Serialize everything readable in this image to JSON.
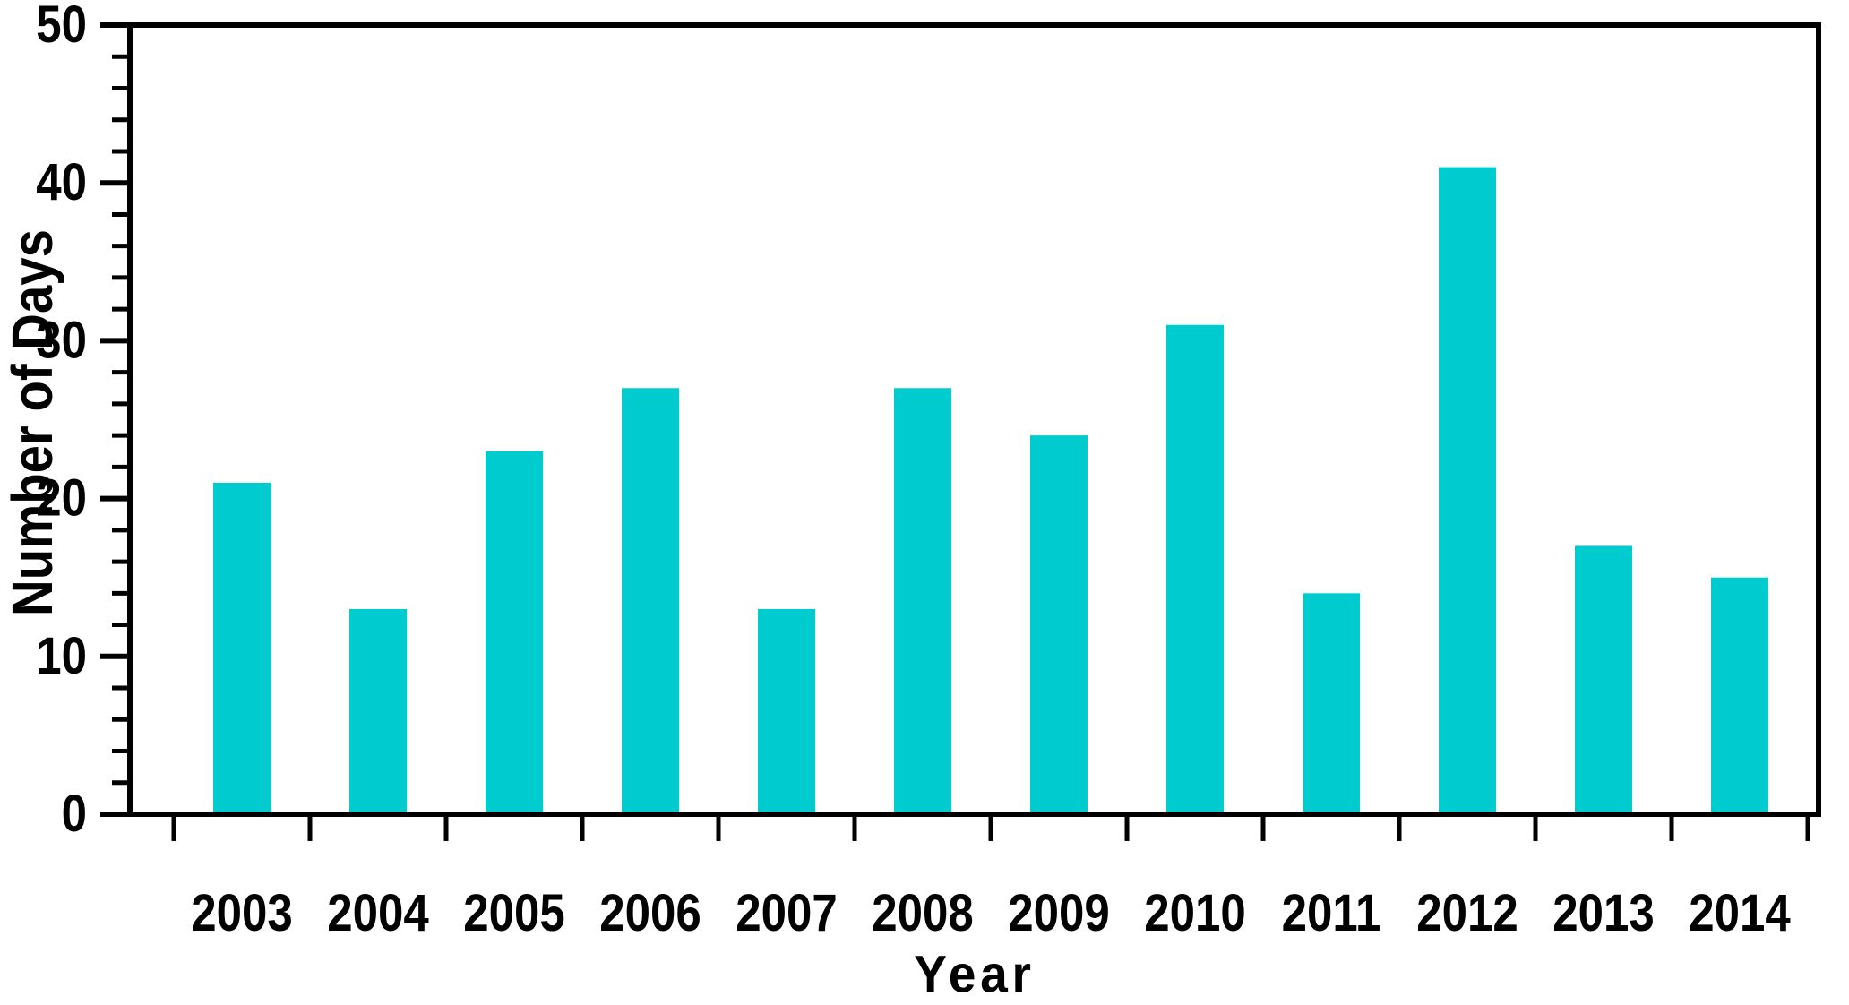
{
  "chart_data": {
    "type": "bar",
    "title": "",
    "xlabel": "Year",
    "ylabel": "Number of Days",
    "categories": [
      "2003",
      "2004",
      "2005",
      "2006",
      "2007",
      "2008",
      "2009",
      "2010",
      "2011",
      "2012",
      "2013",
      "2014"
    ],
    "values": [
      21,
      13,
      23,
      27,
      13,
      27,
      24,
      31,
      14,
      41,
      17,
      15
    ],
    "ylim": [
      0,
      50
    ],
    "y_major_tick_step": 10,
    "y_minor_tick_step": 2,
    "y_tick_labels": [
      "0",
      "10",
      "20",
      "30",
      "40",
      "50"
    ],
    "grid": false,
    "legend": false,
    "frame": "box",
    "bar_color": "#00CCD0",
    "axis_color": "#000000",
    "background_color": "#FFFFFF"
  }
}
